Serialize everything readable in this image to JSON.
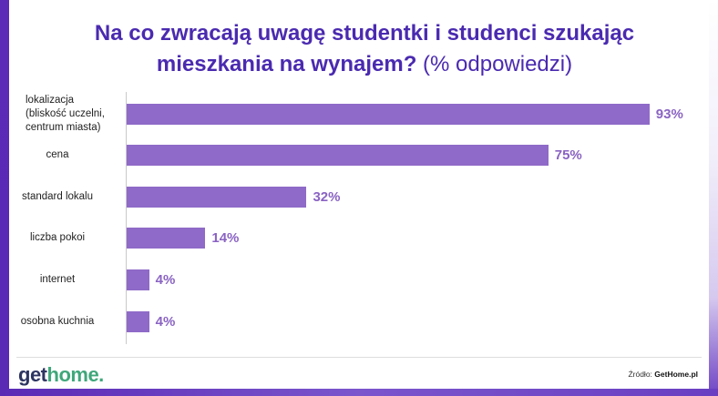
{
  "title": {
    "main": "Na co zwracają uwagę studentki i studenci szukając mieszkania na wynajem?",
    "suffix": "(% odpowiedzi)"
  },
  "chart_data": {
    "type": "bar",
    "orientation": "horizontal",
    "title": "Na co zwracają uwagę studentki i studenci szukając mieszkania na wynajem? (% odpowiedzi)",
    "categories": [
      "lokalizacja (bliskość uczelni, centrum miasta)",
      "cena",
      "standard lokalu",
      "liczba pokoi",
      "internet",
      "osobna kuchnia"
    ],
    "category_lines": [
      [
        "lokalizacja",
        "(bliskość uczelni,",
        "centrum miasta)"
      ],
      [
        "cena"
      ],
      [
        "standard lokalu"
      ],
      [
        "liczba pokoi"
      ],
      [
        "internet"
      ],
      [
        "osobna kuchnia"
      ]
    ],
    "values": [
      93,
      75,
      32,
      14,
      4,
      4
    ],
    "value_labels": [
      "93%",
      "75%",
      "32%",
      "14%",
      "4%",
      "4%"
    ],
    "xlim": [
      0,
      100
    ],
    "grid": false,
    "legend": "none",
    "bar_color": "#8f6ac8",
    "label_color": "#8a63c3"
  },
  "footer": {
    "logo_part1": "get",
    "logo_part2": "home.",
    "source_label": "Źródło:",
    "source_name": "GetHome.pl"
  },
  "colors": {
    "title": "#4a2ab0",
    "frame": "#5b2bb8",
    "logo_dark": "#2d3561",
    "logo_green": "#3fa77a"
  }
}
